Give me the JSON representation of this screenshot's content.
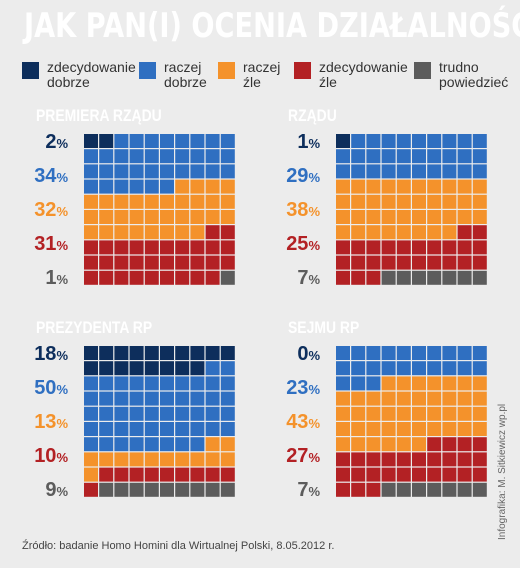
{
  "title": "JAK PAN(I) OCENIA DZIAŁALNOŚĆ:",
  "colors": {
    "decidedly_good": "#0d2e5c",
    "rather_good": "#2f6fc1",
    "rather_bad": "#f4922b",
    "decidedly_bad": "#b32124",
    "hard_to_say": "#5c5c5c"
  },
  "legend": [
    {
      "label": "zdecydowanie\ndobrze",
      "color": "#0d2e5c"
    },
    {
      "label": "raczej\ndobrze",
      "color": "#2f6fc1"
    },
    {
      "label": "raczej\nźle",
      "color": "#f4922b"
    },
    {
      "label": "zdecydowanie\nźle",
      "color": "#b32124"
    },
    {
      "label": "trudno\npowiedzieć",
      "color": "#5c5c5c"
    }
  ],
  "chart_data": [
    {
      "type": "waffle",
      "title": "PREMIERA RZĄDU",
      "categories": [
        "zdecydowanie dobrze",
        "raczej dobrze",
        "raczej źle",
        "zdecydowanie źle",
        "trudno powiedzieć"
      ],
      "values": [
        2,
        34,
        32,
        31,
        1
      ]
    },
    {
      "type": "waffle",
      "title": "RZĄDU",
      "categories": [
        "zdecydowanie dobrze",
        "raczej dobrze",
        "raczej źle",
        "zdecydowanie źle",
        "trudno powiedzieć"
      ],
      "values": [
        1,
        29,
        38,
        25,
        7
      ]
    },
    {
      "type": "waffle",
      "title": "PREZYDENTA RP",
      "categories": [
        "zdecydowanie dobrze",
        "raczej dobrze",
        "raczej źle",
        "zdecydowanie źle",
        "trudno powiedzieć"
      ],
      "values": [
        18,
        50,
        13,
        10,
        9
      ]
    },
    {
      "type": "waffle",
      "title": "SEJMU RP",
      "categories": [
        "zdecydowanie dobrze",
        "raczej dobrze",
        "raczej źle",
        "zdecydowanie źle",
        "trudno powiedzieć"
      ],
      "values": [
        0,
        23,
        43,
        27,
        7
      ]
    }
  ],
  "source": "Źródło: badanie Homo Homini dla Wirtualnej Polski, 8.05.2012 r.",
  "credit": "Infografika: M. Sitkiewicz wp.pl"
}
